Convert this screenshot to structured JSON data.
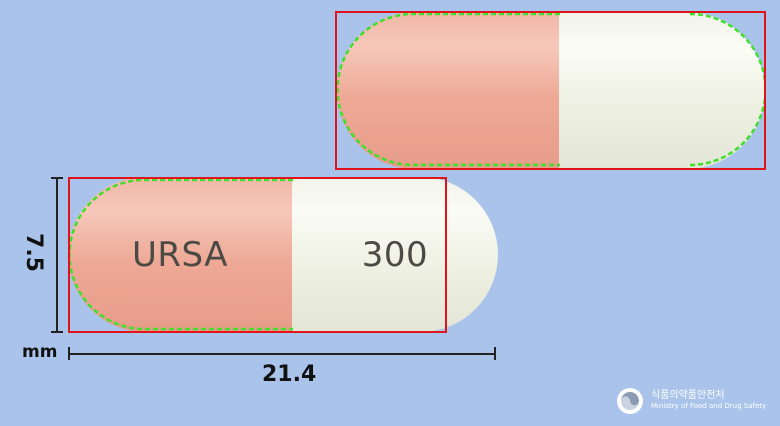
{
  "pill_top": {
    "left_color": "#eeac9a",
    "right_color": "#f3f5ea"
  },
  "pill_bottom": {
    "imprint_left": "URSA",
    "imprint_right": "300",
    "left_color": "#eeac9a",
    "right_color": "#f3f5ea"
  },
  "dimensions": {
    "height_value": "7.5",
    "unit": "mm",
    "length_value": "21.4"
  },
  "logo": {
    "korean": "식품의약품안전처",
    "english": "Ministry of Food and Drug Safety"
  },
  "colors": {
    "background": "#a9c3ea",
    "bbox": "#e0141b",
    "detection_outline": "#3ee02a"
  }
}
